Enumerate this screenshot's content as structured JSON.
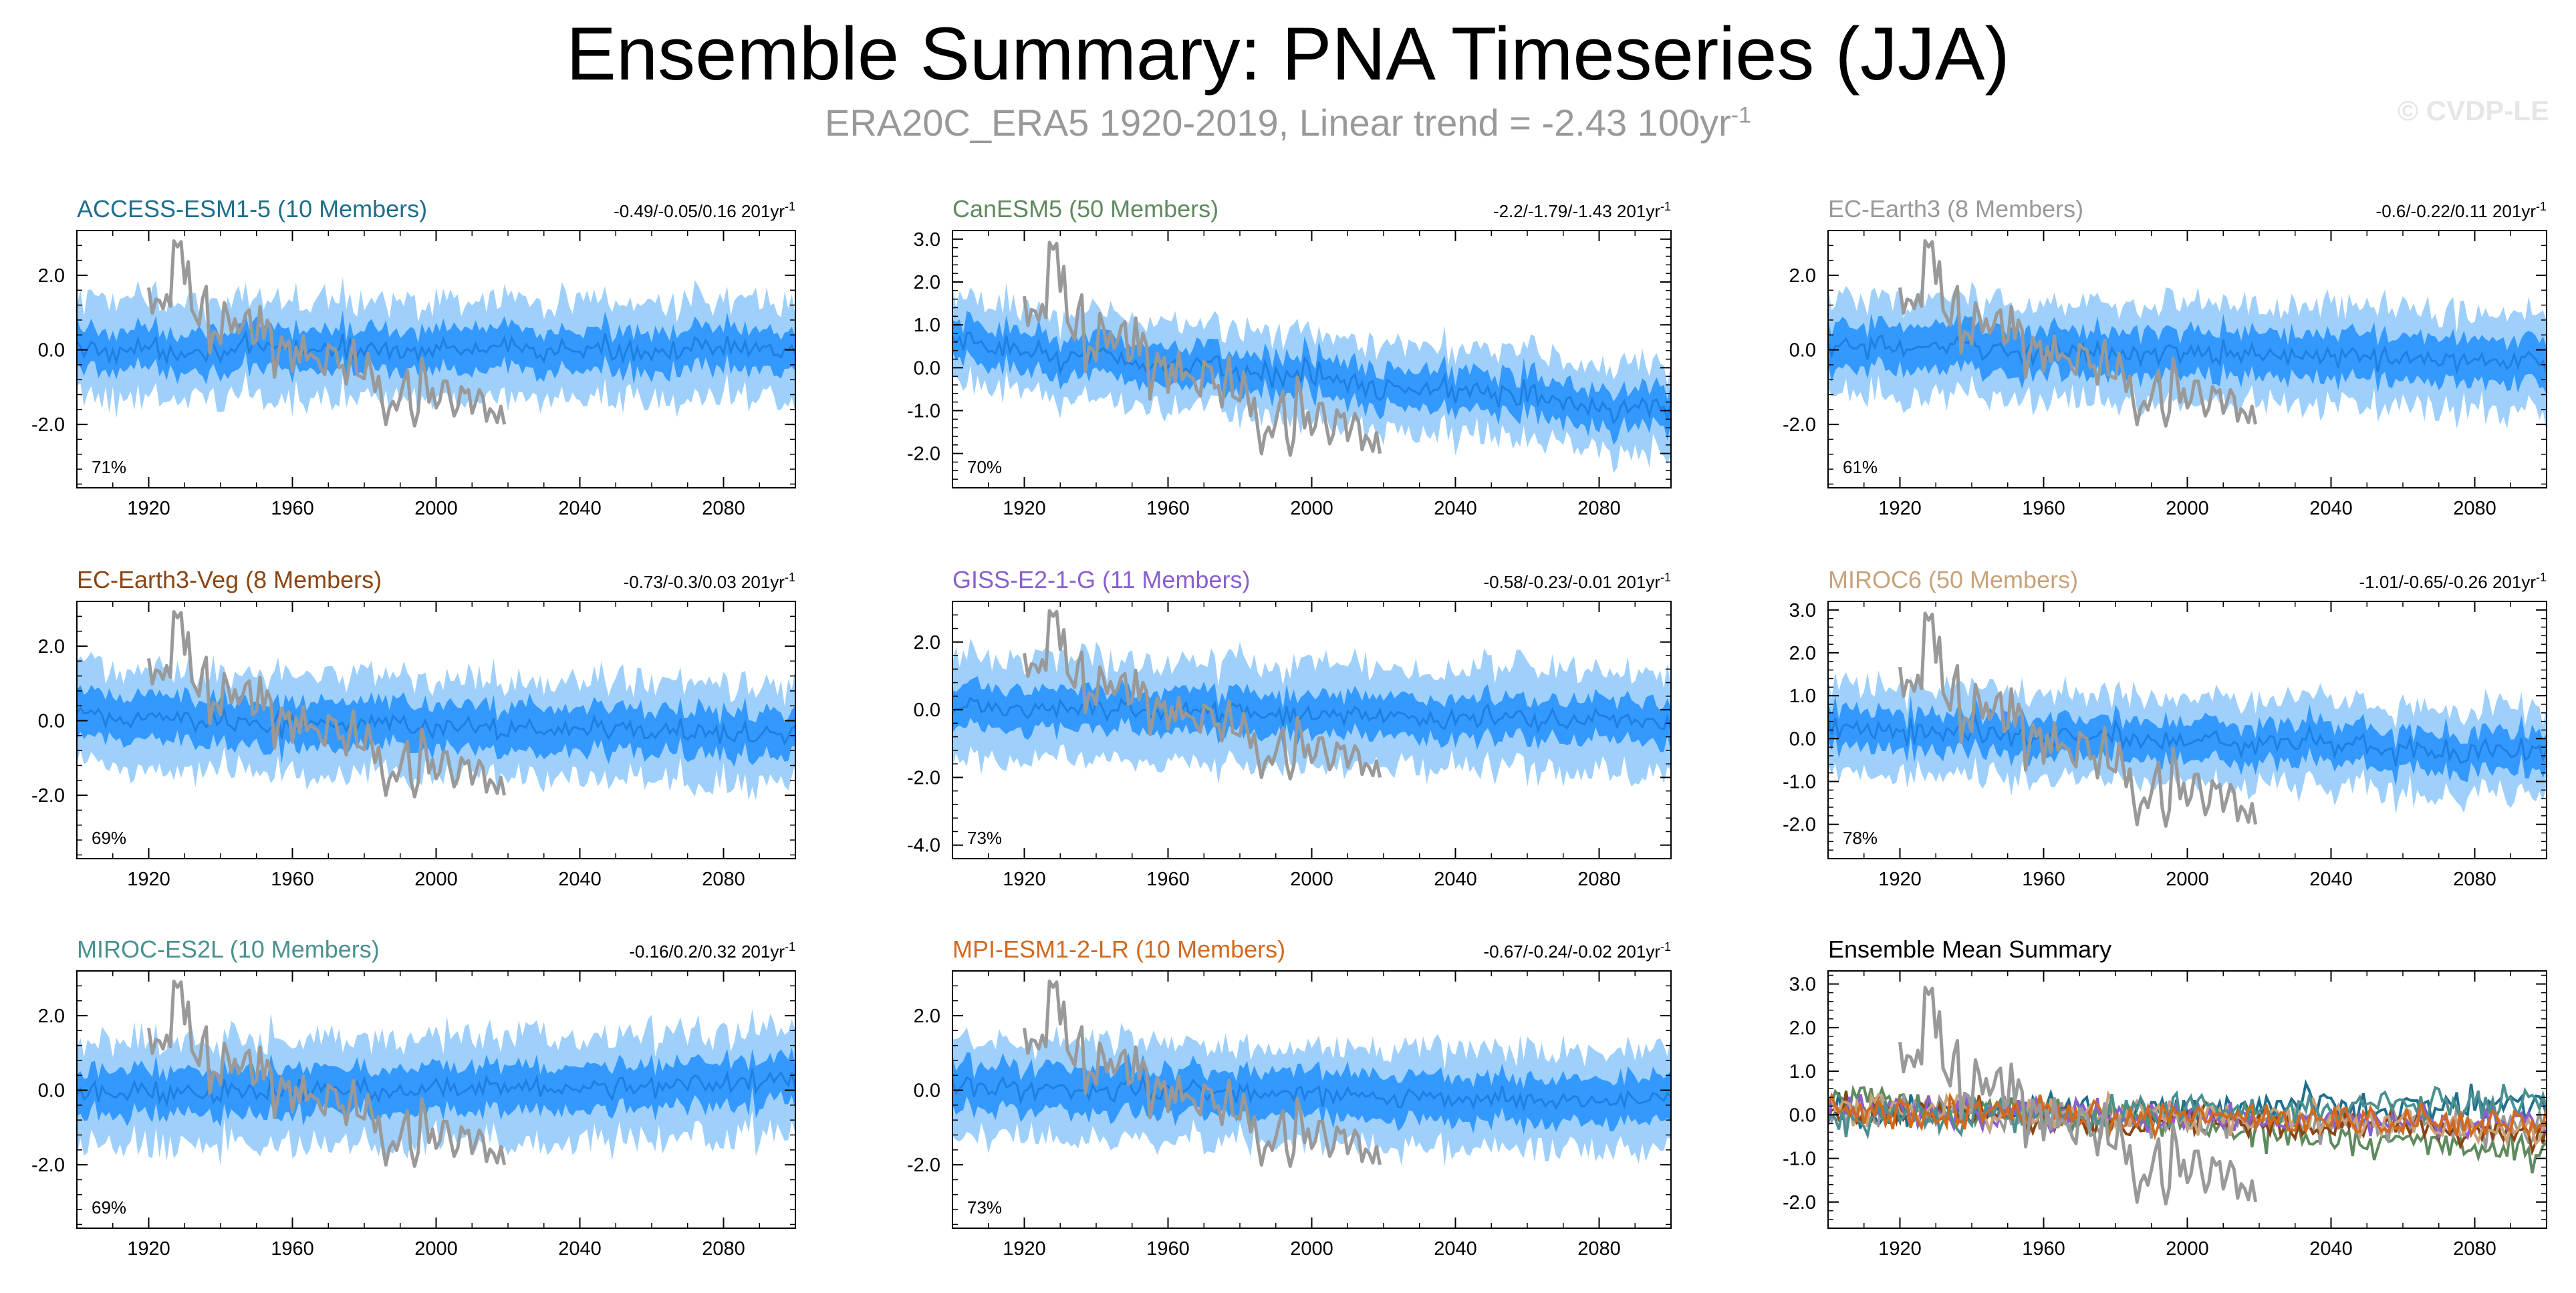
{
  "header": {
    "title": "Ensemble Summary: PNA Timeseries (JJA)",
    "subtitle_main": "ERA20C_ERA5 1920-2019, Linear trend = -2.43 100yr",
    "subtitle_sup": "-1",
    "credit": "© CVDP-LE"
  },
  "colors": {
    "band_outer": "#9fd0fb",
    "band_inner": "#3399ff",
    "ens_mean_line": "#1e7fe0",
    "obs_line": "#999999"
  },
  "chart_data": [
    {
      "type": "area",
      "title": "ACCESS-ESM1-5 (10 Members)",
      "title_color": "#1f6e8c",
      "trend_label": "-0.49/-0.05/0.16 201yr",
      "trend_sup": "-1",
      "percent_label": "71%",
      "x_range": [
        1900,
        2100
      ],
      "x_ticks": [
        1920,
        1960,
        2000,
        2040,
        2080
      ],
      "ylim": [
        -3.7,
        3.2
      ],
      "y_ticks": [
        2.0,
        0.0,
        -2.0
      ],
      "y_tick_labels": [
        "2.0",
        "0.0",
        "-2.0"
      ],
      "ensemble_mean_trend": [
        0.0,
        0.0
      ],
      "outer_halfwidth": 1.3,
      "inner_halfwidth": 0.55,
      "obs_years": [
        1920,
        2019
      ]
    },
    {
      "type": "area",
      "title": "CanESM5 (50 Members)",
      "title_color": "#5e8a5e",
      "trend_label": "-2.2/-1.79/-1.43 201yr",
      "trend_sup": "-1",
      "percent_label": "70%",
      "x_range": [
        1900,
        2100
      ],
      "x_ticks": [
        1920,
        1960,
        2000,
        2040,
        2080
      ],
      "ylim": [
        -2.8,
        3.2
      ],
      "y_ticks": [
        3.0,
        2.0,
        1.0,
        0.0,
        -1.0,
        -2.0
      ],
      "y_tick_labels": [
        "3.0",
        "2.0",
        "1.0",
        "0.0",
        "-1.0",
        "-2.0"
      ],
      "ensemble_mean_trend": [
        0.55,
        -1.0
      ],
      "outer_halfwidth": 1.0,
      "inner_halfwidth": 0.45,
      "obs_years": [
        1920,
        2019
      ]
    },
    {
      "type": "area",
      "title": "EC-Earth3 (8 Members)",
      "title_color": "#999999",
      "trend_label": "-0.6/-0.22/0.11 201yr",
      "trend_sup": "-1",
      "percent_label": "61%",
      "x_range": [
        1900,
        2100
      ],
      "x_ticks": [
        1920,
        1960,
        2000,
        2040,
        2080
      ],
      "ylim": [
        -3.7,
        3.2
      ],
      "y_ticks": [
        2.0,
        0.0,
        -2.0
      ],
      "y_tick_labels": [
        "2.0",
        "0.0",
        "-2.0"
      ],
      "ensemble_mean_trend": [
        0.1,
        -0.3
      ],
      "outer_halfwidth": 1.3,
      "inner_halfwidth": 0.6,
      "obs_years": [
        1920,
        2019
      ]
    },
    {
      "type": "area",
      "title": "EC-Earth3-Veg (8 Members)",
      "title_color": "#8b4513",
      "trend_label": "-0.73/-0.3/0.03 201yr",
      "trend_sup": "-1",
      "percent_label": "69%",
      "x_range": [
        1900,
        2100
      ],
      "x_ticks": [
        1920,
        1960,
        2000,
        2040,
        2080
      ],
      "ylim": [
        -3.7,
        3.2
      ],
      "y_ticks": [
        2.0,
        0.0,
        -2.0
      ],
      "y_tick_labels": [
        "2.0",
        "0.0",
        "-2.0"
      ],
      "ensemble_mean_trend": [
        0.1,
        -0.4
      ],
      "outer_halfwidth": 1.3,
      "inner_halfwidth": 0.6,
      "obs_years": [
        1920,
        2019
      ]
    },
    {
      "type": "area",
      "title": "GISS-E2-1-G (11 Members)",
      "title_color": "#8a5fcf",
      "trend_label": "-0.58/-0.23/-0.01 201yr",
      "trend_sup": "-1",
      "percent_label": "73%",
      "x_range": [
        1900,
        2100
      ],
      "x_ticks": [
        1920,
        1960,
        2000,
        2040,
        2080
      ],
      "ylim": [
        -4.4,
        3.2
      ],
      "y_ticks": [
        2.0,
        0.0,
        -2.0,
        -4.0
      ],
      "y_tick_labels": [
        "2.0",
        "0.0",
        "-2.0",
        "-4.0"
      ],
      "ensemble_mean_trend": [
        0.1,
        -0.35
      ],
      "outer_halfwidth": 1.5,
      "inner_halfwidth": 0.6,
      "obs_years": [
        1920,
        2019
      ]
    },
    {
      "type": "area",
      "title": "MIROC6 (50 Members)",
      "title_color": "#c9a27a",
      "trend_label": "-1.01/-0.65/-0.26 201yr",
      "trend_sup": "-1",
      "percent_label": "78%",
      "x_range": [
        1900,
        2100
      ],
      "x_ticks": [
        1920,
        1960,
        2000,
        2040,
        2080
      ],
      "ylim": [
        -2.8,
        3.2
      ],
      "y_ticks": [
        3.0,
        2.0,
        1.0,
        0.0,
        -1.0,
        -2.0
      ],
      "y_tick_labels": [
        "3.0",
        "2.0",
        "1.0",
        "0.0",
        "-1.0",
        "-2.0"
      ],
      "ensemble_mean_trend": [
        0.2,
        -0.3
      ],
      "outer_halfwidth": 1.0,
      "inner_halfwidth": 0.45,
      "obs_years": [
        1920,
        2019
      ]
    },
    {
      "type": "area",
      "title": "MIROC-ES2L (10 Members)",
      "title_color": "#4a9090",
      "trend_label": "-0.16/0.2/0.32 201yr",
      "trend_sup": "-1",
      "percent_label": "69%",
      "x_range": [
        1900,
        2100
      ],
      "x_ticks": [
        1920,
        1960,
        2000,
        2040,
        2080
      ],
      "ylim": [
        -3.7,
        3.2
      ],
      "y_ticks": [
        2.0,
        0.0,
        -2.0
      ],
      "y_tick_labels": [
        "2.0",
        "0.0",
        "-2.0"
      ],
      "ensemble_mean_trend": [
        -0.1,
        0.2
      ],
      "outer_halfwidth": 1.4,
      "inner_halfwidth": 0.6,
      "obs_years": [
        1920,
        2019
      ]
    },
    {
      "type": "area",
      "title": "MPI-ESM1-2-LR (10 Members)",
      "title_color": "#d2691e",
      "trend_label": "-0.67/-0.24/-0.02 201yr",
      "trend_sup": "-1",
      "percent_label": "73%",
      "x_range": [
        1900,
        2100
      ],
      "x_ticks": [
        1920,
        1960,
        2000,
        2040,
        2080
      ],
      "ylim": [
        -3.7,
        3.2
      ],
      "y_ticks": [
        2.0,
        0.0,
        -2.0
      ],
      "y_tick_labels": [
        "2.0",
        "0.0",
        "-2.0"
      ],
      "ensemble_mean_trend": [
        0.1,
        -0.3
      ],
      "outer_halfwidth": 1.3,
      "inner_halfwidth": 0.6,
      "obs_years": [
        1920,
        2019
      ]
    },
    {
      "type": "line",
      "title": "Ensemble Mean Summary",
      "title_color": "#000000",
      "trend_label": "",
      "trend_sup": "",
      "percent_label": "",
      "x_range": [
        1900,
        2100
      ],
      "x_ticks": [
        1920,
        1960,
        2000,
        2040,
        2080
      ],
      "ylim": [
        -2.6,
        3.3
      ],
      "y_ticks": [
        3.0,
        2.0,
        1.0,
        0.0,
        -1.0,
        -2.0
      ],
      "y_tick_labels": [
        "3.0",
        "2.0",
        "1.0",
        "0.0",
        "-1.0",
        "-2.0"
      ],
      "series": [
        {
          "name": "ACCESS-ESM1-5",
          "color": "#1f6e8c",
          "trend": [
            0.0,
            0.3
          ]
        },
        {
          "name": "CanESM5",
          "color": "#5e8a5e",
          "trend": [
            0.4,
            -0.85
          ]
        },
        {
          "name": "EC-Earth3",
          "color": "#999999",
          "trend": [
            0.1,
            -0.3
          ]
        },
        {
          "name": "EC-Earth3-Veg",
          "color": "#8b4513",
          "trend": [
            0.1,
            -0.4
          ]
        },
        {
          "name": "GISS-E2-1-G",
          "color": "#8a5fcf",
          "trend": [
            0.1,
            -0.2
          ]
        },
        {
          "name": "MIROC6",
          "color": "#c9a27a",
          "trend": [
            0.2,
            -0.3
          ]
        },
        {
          "name": "MIROC-ES2L",
          "color": "#4a9090",
          "trend": [
            -0.1,
            0.3
          ]
        },
        {
          "name": "MPI-ESM1-2-LR",
          "color": "#d2691e",
          "trend": [
            0.1,
            -0.2
          ]
        }
      ],
      "obs_years": [
        1920,
        2019
      ]
    }
  ]
}
